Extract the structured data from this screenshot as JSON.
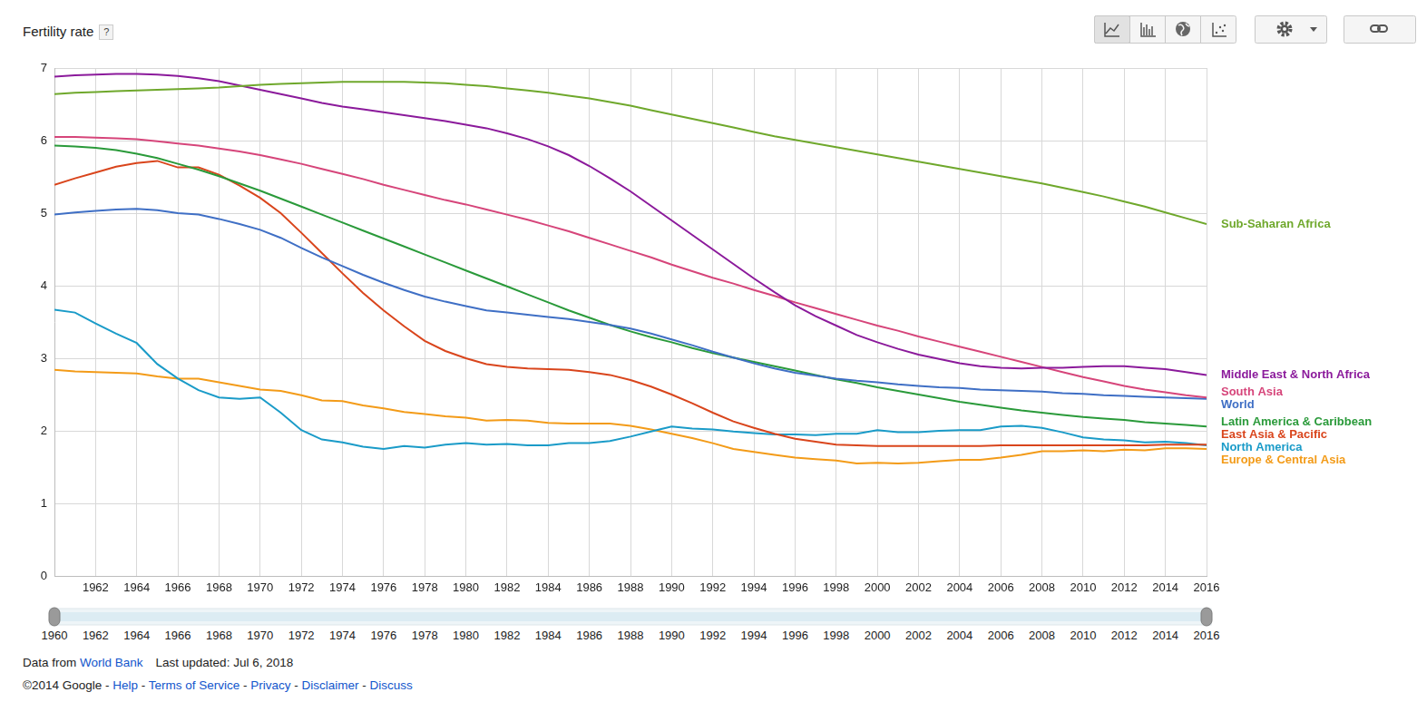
{
  "header": {
    "help_button": "?"
  },
  "chart_data": {
    "type": "line",
    "title": "Fertility rate",
    "x": [
      1960,
      1961,
      1962,
      1963,
      1964,
      1965,
      1966,
      1967,
      1968,
      1969,
      1970,
      1971,
      1972,
      1973,
      1974,
      1975,
      1976,
      1977,
      1978,
      1979,
      1980,
      1981,
      1982,
      1983,
      1984,
      1985,
      1986,
      1987,
      1988,
      1989,
      1990,
      1991,
      1992,
      1993,
      1994,
      1995,
      1996,
      1997,
      1998,
      1999,
      2000,
      2001,
      2002,
      2003,
      2004,
      2005,
      2006,
      2007,
      2008,
      2009,
      2010,
      2011,
      2012,
      2013,
      2014,
      2015,
      2016
    ],
    "xlim": [
      1960,
      2016
    ],
    "xticks": [
      1962,
      1964,
      1966,
      1968,
      1970,
      1972,
      1974,
      1976,
      1978,
      1980,
      1982,
      1984,
      1986,
      1988,
      1990,
      1992,
      1994,
      1996,
      1998,
      2000,
      2002,
      2004,
      2006,
      2008,
      2010,
      2012,
      2014,
      2016
    ],
    "ylim": [
      0,
      7
    ],
    "yticks": [
      0,
      1,
      2,
      3,
      4,
      5,
      6,
      7
    ],
    "grid": true,
    "series": [
      {
        "name": "Sub-Saharan Africa",
        "color": "#6fa82c",
        "values": [
          6.64,
          6.66,
          6.67,
          6.68,
          6.69,
          6.7,
          6.71,
          6.72,
          6.73,
          6.75,
          6.77,
          6.78,
          6.79,
          6.8,
          6.81,
          6.81,
          6.81,
          6.81,
          6.8,
          6.79,
          6.77,
          6.75,
          6.72,
          6.69,
          6.66,
          6.62,
          6.58,
          6.53,
          6.48,
          6.42,
          6.36,
          6.3,
          6.24,
          6.18,
          6.12,
          6.06,
          6.01,
          5.96,
          5.91,
          5.86,
          5.81,
          5.76,
          5.71,
          5.66,
          5.61,
          5.56,
          5.51,
          5.46,
          5.41,
          5.35,
          5.29,
          5.23,
          5.16,
          5.09,
          5.01,
          4.93,
          4.85
        ]
      },
      {
        "name": "Middle East & North Africa",
        "color": "#8b1a9b",
        "values": [
          6.88,
          6.9,
          6.91,
          6.92,
          6.92,
          6.91,
          6.89,
          6.86,
          6.82,
          6.76,
          6.7,
          6.64,
          6.58,
          6.52,
          6.47,
          6.43,
          6.39,
          6.35,
          6.31,
          6.27,
          6.22,
          6.17,
          6.1,
          6.02,
          5.92,
          5.8,
          5.65,
          5.48,
          5.3,
          5.1,
          4.9,
          4.7,
          4.5,
          4.3,
          4.1,
          3.91,
          3.73,
          3.58,
          3.45,
          3.32,
          3.22,
          3.13,
          3.05,
          2.99,
          2.93,
          2.89,
          2.87,
          2.86,
          2.87,
          2.87,
          2.88,
          2.89,
          2.89,
          2.87,
          2.85,
          2.81,
          2.77
        ]
      },
      {
        "name": "South Asia",
        "color": "#d6457a",
        "values": [
          6.05,
          6.05,
          6.04,
          6.03,
          6.02,
          5.99,
          5.96,
          5.93,
          5.89,
          5.85,
          5.8,
          5.74,
          5.68,
          5.61,
          5.54,
          5.47,
          5.39,
          5.32,
          5.25,
          5.18,
          5.12,
          5.05,
          4.98,
          4.91,
          4.83,
          4.75,
          4.66,
          4.57,
          4.48,
          4.39,
          4.29,
          4.2,
          4.11,
          4.03,
          3.94,
          3.86,
          3.77,
          3.69,
          3.61,
          3.53,
          3.45,
          3.38,
          3.3,
          3.23,
          3.16,
          3.09,
          3.02,
          2.95,
          2.88,
          2.81,
          2.74,
          2.68,
          2.62,
          2.57,
          2.53,
          2.49,
          2.46
        ]
      },
      {
        "name": "World",
        "color": "#3f6fc5",
        "values": [
          4.98,
          5.01,
          5.03,
          5.05,
          5.06,
          5.04,
          5.0,
          4.98,
          4.92,
          4.85,
          4.77,
          4.66,
          4.52,
          4.39,
          4.27,
          4.15,
          4.04,
          3.94,
          3.85,
          3.78,
          3.72,
          3.66,
          3.63,
          3.6,
          3.57,
          3.54,
          3.5,
          3.46,
          3.41,
          3.34,
          3.26,
          3.18,
          3.09,
          3.01,
          2.93,
          2.86,
          2.8,
          2.76,
          2.72,
          2.69,
          2.67,
          2.64,
          2.62,
          2.6,
          2.59,
          2.57,
          2.56,
          2.55,
          2.54,
          2.52,
          2.51,
          2.49,
          2.48,
          2.47,
          2.46,
          2.45,
          2.44
        ]
      },
      {
        "name": "Latin America & Caribbean",
        "color": "#2a9a3a",
        "values": [
          5.93,
          5.92,
          5.9,
          5.87,
          5.82,
          5.76,
          5.68,
          5.6,
          5.51,
          5.41,
          5.31,
          5.2,
          5.09,
          4.98,
          4.87,
          4.76,
          4.65,
          4.54,
          4.43,
          4.32,
          4.21,
          4.1,
          3.99,
          3.88,
          3.77,
          3.66,
          3.56,
          3.46,
          3.37,
          3.29,
          3.22,
          3.14,
          3.07,
          3.01,
          2.95,
          2.89,
          2.83,
          2.77,
          2.71,
          2.66,
          2.6,
          2.55,
          2.5,
          2.45,
          2.4,
          2.36,
          2.32,
          2.28,
          2.25,
          2.22,
          2.19,
          2.17,
          2.15,
          2.12,
          2.1,
          2.08,
          2.06
        ]
      },
      {
        "name": "East Asia & Pacific",
        "color": "#d9451c",
        "values": [
          5.39,
          5.48,
          5.56,
          5.64,
          5.69,
          5.72,
          5.63,
          5.63,
          5.53,
          5.38,
          5.21,
          5.0,
          4.73,
          4.45,
          4.17,
          3.9,
          3.66,
          3.44,
          3.24,
          3.1,
          3.0,
          2.92,
          2.88,
          2.86,
          2.85,
          2.84,
          2.81,
          2.77,
          2.7,
          2.61,
          2.5,
          2.38,
          2.25,
          2.13,
          2.04,
          1.96,
          1.89,
          1.85,
          1.81,
          1.8,
          1.79,
          1.79,
          1.79,
          1.79,
          1.79,
          1.79,
          1.8,
          1.8,
          1.8,
          1.8,
          1.8,
          1.8,
          1.8,
          1.8,
          1.81,
          1.81,
          1.81
        ]
      },
      {
        "name": "North America",
        "color": "#1a9bc8",
        "values": [
          3.67,
          3.63,
          3.48,
          3.34,
          3.21,
          2.92,
          2.72,
          2.56,
          2.46,
          2.44,
          2.46,
          2.25,
          2.01,
          1.88,
          1.84,
          1.78,
          1.75,
          1.79,
          1.77,
          1.81,
          1.83,
          1.81,
          1.82,
          1.8,
          1.8,
          1.83,
          1.83,
          1.86,
          1.92,
          1.99,
          2.06,
          2.03,
          2.02,
          1.99,
          1.97,
          1.95,
          1.95,
          1.94,
          1.96,
          1.96,
          2.01,
          1.98,
          1.98,
          2.0,
          2.01,
          2.01,
          2.06,
          2.07,
          2.04,
          1.98,
          1.91,
          1.88,
          1.87,
          1.84,
          1.85,
          1.83,
          1.8
        ]
      },
      {
        "name": "Europe & Central Asia",
        "color": "#f39b18",
        "values": [
          2.84,
          2.82,
          2.81,
          2.8,
          2.79,
          2.75,
          2.72,
          2.72,
          2.67,
          2.62,
          2.57,
          2.55,
          2.49,
          2.42,
          2.41,
          2.35,
          2.31,
          2.26,
          2.23,
          2.2,
          2.18,
          2.14,
          2.15,
          2.14,
          2.11,
          2.1,
          2.1,
          2.1,
          2.07,
          2.02,
          1.96,
          1.9,
          1.83,
          1.75,
          1.71,
          1.67,
          1.63,
          1.61,
          1.59,
          1.55,
          1.56,
          1.55,
          1.56,
          1.58,
          1.6,
          1.6,
          1.63,
          1.67,
          1.72,
          1.72,
          1.73,
          1.72,
          1.74,
          1.73,
          1.76,
          1.76,
          1.75
        ]
      }
    ]
  },
  "slider": {
    "range": [
      1960,
      2016
    ],
    "labels": [
      1960,
      1962,
      1964,
      1966,
      1968,
      1970,
      1972,
      1974,
      1976,
      1978,
      1980,
      1982,
      1984,
      1986,
      1988,
      1990,
      1992,
      1994,
      1996,
      1998,
      2000,
      2002,
      2004,
      2006,
      2008,
      2010,
      2012,
      2014,
      2016
    ]
  },
  "footer": {
    "source_prefix": "Data from",
    "source_link": "World Bank",
    "updated": "Last updated: Jul 6, 2018",
    "copyright": "©2014 Google",
    "separator": "-",
    "links": [
      "Help",
      "Terms of Service",
      "Privacy",
      "Disclaimer",
      "Discuss"
    ]
  }
}
